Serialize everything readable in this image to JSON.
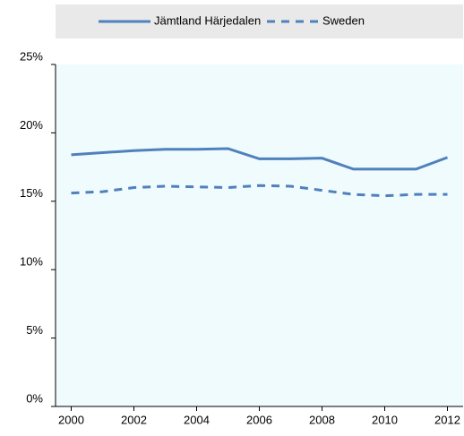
{
  "chart_data": {
    "type": "line",
    "x": [
      2000,
      2001,
      2002,
      2003,
      2004,
      2005,
      2006,
      2007,
      2008,
      2009,
      2010,
      2011,
      2012
    ],
    "series": [
      {
        "name": "Jämtland Härjedalen",
        "color": "#4f81bd",
        "dash": "solid",
        "values": [
          18.4,
          18.55,
          18.7,
          18.8,
          18.8,
          18.85,
          18.1,
          18.1,
          18.15,
          17.35,
          17.35,
          17.35,
          18.2
        ]
      },
      {
        "name": "Sweden",
        "color": "#4f81bd",
        "dash": "dashed",
        "values": [
          15.6,
          15.7,
          16.0,
          16.1,
          16.05,
          16.0,
          16.15,
          16.1,
          15.8,
          15.5,
          15.4,
          15.5,
          15.5
        ]
      }
    ],
    "xlim": [
      1999.5,
      2012.5
    ],
    "xticks": [
      2000,
      2002,
      2004,
      2006,
      2008,
      2010,
      2012
    ],
    "ylim": [
      0,
      25
    ],
    "yticks": [
      {
        "value": 0,
        "label": "0%"
      },
      {
        "value": 5,
        "label": "5%"
      },
      {
        "value": 10,
        "label": "10%"
      },
      {
        "value": 15,
        "label": "15%"
      },
      {
        "value": 20,
        "label": "20%"
      },
      {
        "value": 25,
        "label": "25%"
      }
    ],
    "legend": "top",
    "grid": false
  }
}
